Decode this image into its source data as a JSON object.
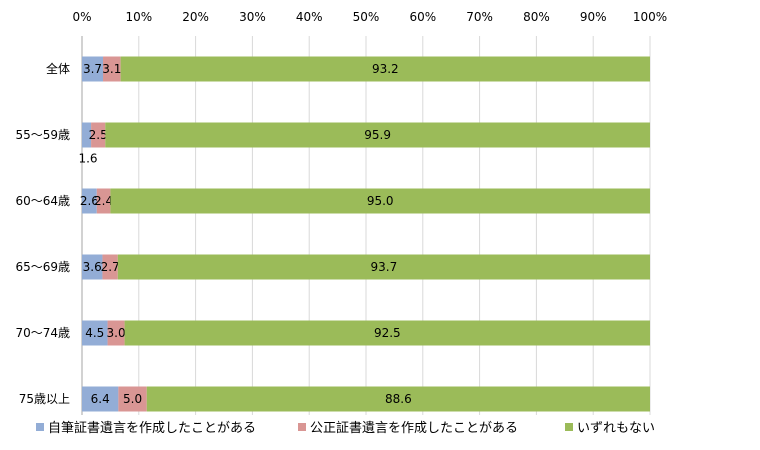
{
  "chart_data": {
    "type": "bar",
    "orientation": "horizontal",
    "stacked": true,
    "percent_stacked": true,
    "categories": [
      "全体",
      "55～59歳",
      "60～64歳",
      "65～69歳",
      "70～74歳",
      "75歳以上"
    ],
    "series": [
      {
        "name": "自筆証書遺言を作成したことがある",
        "values": [
          3.7,
          1.6,
          2.6,
          3.6,
          4.5,
          6.4
        ],
        "color": "#93add6"
      },
      {
        "name": "公正証書遺言を作成したことがある",
        "values": [
          3.1,
          2.5,
          2.4,
          2.7,
          3.0,
          5.0
        ],
        "color": "#d99694"
      },
      {
        "name": "いずれもない",
        "values": [
          93.2,
          95.9,
          95.0,
          93.7,
          92.5,
          88.6
        ],
        "color": "#9bbb59"
      }
    ],
    "value_labels": [
      [
        "3.7",
        "1.6",
        "2.6",
        "3.6",
        "4.5",
        "6.4"
      ],
      [
        "3.1",
        "2.5",
        "2.4",
        "2.7",
        "3.0",
        "5.0"
      ],
      [
        "93.2",
        "95.9",
        "95.0",
        "93.7",
        "92.5",
        "88.6"
      ]
    ],
    "x_ticks": [
      "0%",
      "10%",
      "20%",
      "30%",
      "40%",
      "50%",
      "60%",
      "70%",
      "80%",
      "90%",
      "100%"
    ],
    "xlim": [
      0,
      100
    ],
    "x_axis_position": "top",
    "grid": true,
    "legend_position": "bottom",
    "title": "",
    "xlabel": "",
    "ylabel": ""
  }
}
